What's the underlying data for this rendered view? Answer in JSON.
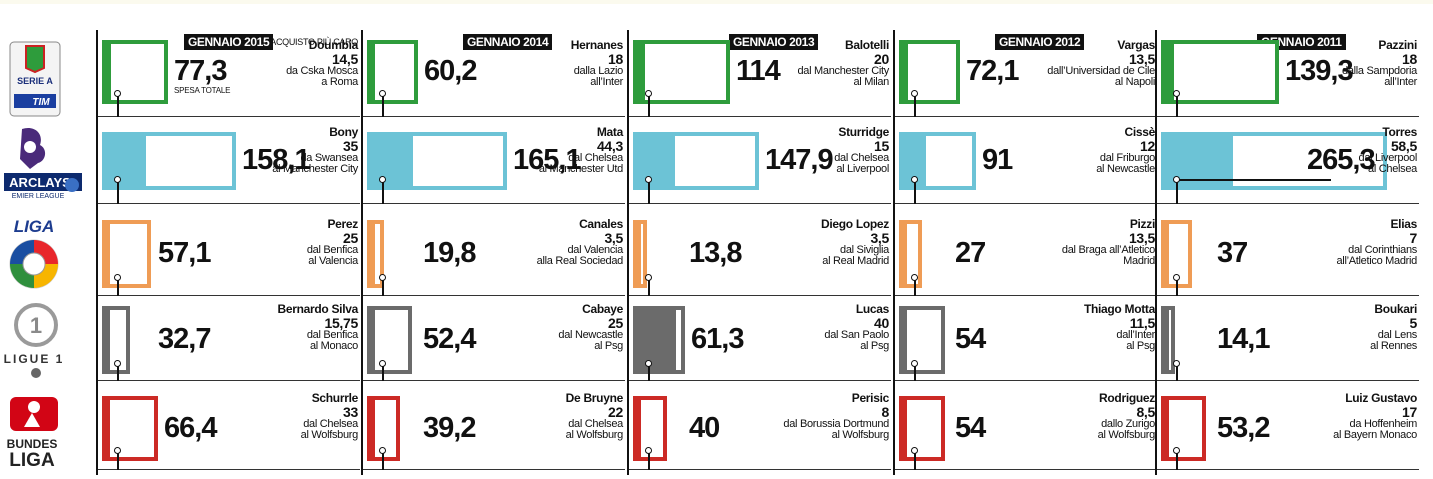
{
  "chart_data": {
    "type": "bar",
    "leagues": [
      {
        "name": "Serie A",
        "color": "#2e9c3c"
      },
      {
        "name": "Premier League",
        "color": "#6cc3d6"
      },
      {
        "name": "Liga",
        "color": "#ef9c55"
      },
      {
        "name": "Ligue 1",
        "color": "#6b6b6b"
      },
      {
        "name": "Bundesliga",
        "color": "#cc2a25"
      }
    ],
    "columns": [
      {
        "title": "GENNAIO 2015",
        "note": "ACQUISTO PIÙ CARO",
        "total_label": "SPESA TOTALE",
        "cells": [
          {
            "value": 77.3,
            "value_text": "77,3",
            "player": "Doumbia",
            "fee": "14,5",
            "from": "da Cska Mosca",
            "to": "a Roma"
          },
          {
            "value": 158.1,
            "value_text": "158,1",
            "player": "Bony",
            "fee": "35",
            "from": "da Swansea",
            "to": "al Manchester City"
          },
          {
            "value": 57.1,
            "value_text": "57,1",
            "player": "Perez",
            "fee": "25",
            "from": "dal Benfica",
            "to": "al Valencia"
          },
          {
            "value": 32.7,
            "value_text": "32,7",
            "player": "Bernardo Silva",
            "fee": "15,75",
            "from": "dal Benfica",
            "to": "al Monaco"
          },
          {
            "value": 66.4,
            "value_text": "66,4",
            "player": "Schurrle",
            "fee": "33",
            "from": "dal Chelsea",
            "to": "al Wolfsburg"
          }
        ]
      },
      {
        "title": "GENNAIO 2014",
        "note": "",
        "total_label": "",
        "cells": [
          {
            "value": 60.2,
            "value_text": "60,2",
            "player": "Hernanes",
            "fee": "18",
            "from": "dalla Lazio",
            "to": "all’Inter"
          },
          {
            "value": 165.1,
            "value_text": "165,1",
            "player": "Mata",
            "fee": "44,3",
            "from": "dal Chelsea",
            "to": "al Manchester Utd"
          },
          {
            "value": 19.8,
            "value_text": "19,8",
            "player": "Canales",
            "fee": "3,5",
            "from": "dal Valencia",
            "to": "alla Real Sociedad"
          },
          {
            "value": 52.4,
            "value_text": "52,4",
            "player": "Cabaye",
            "fee": "25",
            "from": "dal Newcastle",
            "to": "al Psg"
          },
          {
            "value": 39.2,
            "value_text": "39,2",
            "player": "De Bruyne",
            "fee": "22",
            "from": "dal Chelsea",
            "to": "al Wolfsburg"
          }
        ]
      },
      {
        "title": "GENNAIO 2013",
        "note": "",
        "total_label": "",
        "cells": [
          {
            "value": 114,
            "value_text": "114",
            "player": "Balotelli",
            "fee": "20",
            "from": "dal Manchester City",
            "to": "al Milan"
          },
          {
            "value": 147.9,
            "value_text": "147,9",
            "player": "Sturridge",
            "fee": "15",
            "from": "dal Chelsea",
            "to": "al Liverpool"
          },
          {
            "value": 13.8,
            "value_text": "13,8",
            "player": "Diego Lopez",
            "fee": "3,5",
            "from": "dal Siviglia",
            "to": "al Real Madrid"
          },
          {
            "value": 61.3,
            "value_text": "61,3",
            "player": "Lucas",
            "fee": "40",
            "from": "dal San Paolo",
            "to": "al Psg"
          },
          {
            "value": 40,
            "value_text": "40",
            "player": "Perisic",
            "fee": "8",
            "from": "dal Borussia Dortmund",
            "to": "al Wolfsburg"
          }
        ]
      },
      {
        "title": "GENNAIO 2012",
        "note": "",
        "total_label": "",
        "cells": [
          {
            "value": 72.1,
            "value_text": "72,1",
            "player": "Vargas",
            "fee": "13,5",
            "from": "dall’Universidad de Cile",
            "to": "al Napoli"
          },
          {
            "value": 91,
            "value_text": "91",
            "player": "Cissè",
            "fee": "12",
            "from": "dal Friburgo",
            "to": "al Newcastle"
          },
          {
            "value": 27,
            "value_text": "27",
            "player": "Pizzi",
            "fee": "13,5",
            "from": "dal Braga all’Atletico",
            "to": "Madrid"
          },
          {
            "value": 54,
            "value_text": "54",
            "player": "Thiago Motta",
            "fee": "11,5",
            "from": "dall’Inter",
            "to": "al Psg"
          },
          {
            "value": 54,
            "value_text": "54",
            "player": "Rodriguez",
            "fee": "8,5",
            "from": "dallo Zurigo",
            "to": "al Wolfsburg"
          }
        ]
      },
      {
        "title": "GENNAIO 2011",
        "note": "",
        "total_label": "",
        "cells": [
          {
            "value": 139.3,
            "value_text": "139,3",
            "player": "Pazzini",
            "fee": "18",
            "from": "dalla Sampdoria",
            "to": "all’Inter"
          },
          {
            "value": 265.3,
            "value_text": "265,3",
            "player": "Torres",
            "fee": "58,5",
            "from": "dal Liverpool",
            "to": "al Chelsea"
          },
          {
            "value": 37,
            "value_text": "37",
            "player": "Elias",
            "fee": "7",
            "from": "dal Corinthians",
            "to": "all’Atletico Madrid"
          },
          {
            "value": 14.1,
            "value_text": "14,1",
            "player": "Boukari",
            "fee": "5",
            "from": "dal Lens",
            "to": "al Rennes"
          },
          {
            "value": 53.2,
            "value_text": "53,2",
            "player": "Luiz Gustavo",
            "fee": "17",
            "from": "da Hoffenheim",
            "to": "al Bayern Monaco"
          }
        ]
      }
    ]
  },
  "logos": {
    "serie_a": {
      "line1": "SERIE A",
      "line2": "TIM"
    },
    "premier": {
      "line1": "ARCLAYS",
      "line2": "EMIER LEAGUE"
    },
    "liga": {
      "line1": "LIGA"
    },
    "ligue1": {
      "line1": "LIGUE 1"
    },
    "bundesliga": {
      "line1": "BUNDES",
      "line2": "LIGA"
    }
  }
}
